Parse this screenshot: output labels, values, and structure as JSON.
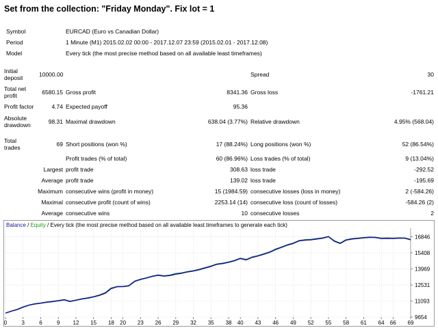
{
  "title": "Set from the collection: \"Friday Monday\".   Fix lot = 1",
  "info": {
    "symbol_label": "Symbol",
    "symbol_value": "EURCAD (Euro vs Canadian Dollar)",
    "period_label": "Period",
    "period_value": "1 Minute (M1) 2015.02.02 00:00 - 2017.12.07 23:59 (2015.02.01 - 2017.12.08)",
    "model_label": "Model",
    "model_value": "Every tick (the most precise method based on all available least timeframes)"
  },
  "stats": {
    "initial_deposit_label": "Initial deposit",
    "initial_deposit_value": "10000.00",
    "spread_label": "Spread",
    "spread_value": "30",
    "total_net_profit_label": "Total net profit",
    "total_net_profit_value": "6580.15",
    "gross_profit_label": "Gross profit",
    "gross_profit_value": "8341.36",
    "gross_loss_label": "Gross loss",
    "gross_loss_value": "-1761.21",
    "profit_factor_label": "Profit factor",
    "profit_factor_value": "4.74",
    "expected_payoff_label": "Expected payoff",
    "expected_payoff_value": "95.36",
    "absolute_drawdown_label": "Absolute drawdown",
    "absolute_drawdown_value": "98.31",
    "maximal_drawdown_label": "Maximal drawdown",
    "maximal_drawdown_value": "638.04 (3.77%)",
    "relative_drawdown_label": "Relative drawdown",
    "relative_drawdown_value": "4.95% (568.04)",
    "total_trades_label": "Total trades",
    "total_trades_value": "69",
    "short_positions_label": "Short positions (won %)",
    "short_positions_value": "17 (88.24%)",
    "long_positions_label": "Long positions (won %)",
    "long_positions_value": "52 (86.54%)",
    "profit_trades_label": "Profit trades (% of total)",
    "profit_trades_value": "60 (86.96%)",
    "loss_trades_label": "Loss trades (% of total)",
    "loss_trades_value": "9 (13.04%)",
    "largest_label": "Largest",
    "largest_profit_label": "profit trade",
    "largest_profit_value": "308.63",
    "largest_loss_label": "loss trade",
    "largest_loss_value": "-292.52",
    "average_label": "Average",
    "average_profit_label": "profit trade",
    "average_profit_value": "139.02",
    "average_loss_label": "loss trade",
    "average_loss_value": "-195.69",
    "maximum_label": "Maximum",
    "max_cons_wins_label": "consecutive wins (profit in money)",
    "max_cons_wins_value": "15 (1984.59)",
    "max_cons_losses_label": "consecutive losses (loss in money)",
    "max_cons_losses_value": "2 (-584.26)",
    "maximal_label": "Maximal",
    "maximal_cons_profit_label": "consecutive profit (count of wins)",
    "maximal_cons_profit_value": "2253.14 (14)",
    "maximal_cons_loss_label": "consecutive loss (count of losses)",
    "maximal_cons_loss_value": "-584.26 (2)",
    "average2_label": "Average",
    "avg_cons_wins_label": "consecutive wins",
    "avg_cons_wins_value": "10",
    "avg_cons_losses_label": "consecutive losses",
    "avg_cons_losses_value": "2"
  },
  "legend": {
    "balance": "Balance",
    "sep": " / ",
    "equity": "Equity",
    "rest": " / Every tick (the most precise method based on all available least timeframes to generate each tick)"
  },
  "colors": {
    "balance": "#1a1a9a",
    "equity": "#1b9a1b",
    "grid": "#c8c8c8",
    "frame": "#9a9a9a"
  },
  "chart_data": {
    "type": "line",
    "title": "",
    "xlabel": "",
    "ylabel": "",
    "x_ticks": [
      "0",
      "3",
      "6",
      "9",
      "12",
      "15",
      "18",
      "20",
      "23",
      "26",
      "29",
      "32",
      "35",
      "38",
      "40",
      "43",
      "46",
      "49",
      "52",
      "55",
      "58",
      "61",
      "64",
      "66",
      "69"
    ],
    "y_ticks": [
      "9654",
      "11093",
      "12531",
      "13969",
      "15408",
      "16846"
    ],
    "xlim": [
      0,
      69
    ],
    "ylim": [
      9654,
      17370
    ],
    "grid": true,
    "series": [
      {
        "name": "Balance",
        "x": [
          0,
          1,
          2,
          3,
          4,
          5,
          6,
          7,
          8,
          9,
          10,
          11,
          12,
          13,
          14,
          15,
          16,
          17,
          18,
          19,
          20,
          21,
          22,
          23,
          24,
          25,
          26,
          27,
          28,
          29,
          30,
          31,
          32,
          33,
          34,
          35,
          36,
          37,
          38,
          39,
          40,
          41,
          42,
          43,
          44,
          45,
          46,
          47,
          48,
          49,
          50,
          51,
          52,
          53,
          54,
          55,
          56,
          57,
          58,
          59,
          60,
          61,
          62,
          63,
          64,
          65,
          66,
          67,
          68,
          69
        ],
        "y": [
          10000,
          10180,
          10330,
          10540,
          10720,
          10830,
          10900,
          10980,
          11040,
          11110,
          11200,
          11050,
          11160,
          11270,
          11350,
          11460,
          11600,
          11800,
          12200,
          12370,
          12380,
          12450,
          12850,
          13020,
          13150,
          13300,
          13400,
          13320,
          13380,
          13500,
          13580,
          13700,
          13780,
          13900,
          14050,
          14200,
          14380,
          14450,
          14560,
          14700,
          14900,
          14780,
          15000,
          15130,
          15290,
          15460,
          15700,
          15900,
          16100,
          16250,
          16480,
          16550,
          16580,
          16650,
          16720,
          16860,
          16450,
          16250,
          16550,
          16650,
          16700,
          16750,
          16800,
          16780,
          16700,
          16710,
          16700,
          16720,
          16720,
          16580
        ]
      },
      {
        "name": "Equity",
        "x": [
          0,
          1,
          2,
          3,
          4,
          5,
          6,
          7,
          8,
          9,
          10,
          11,
          12,
          13,
          14,
          15,
          16,
          17,
          18,
          19,
          20,
          21,
          22,
          23,
          24,
          25,
          26,
          27,
          28,
          29,
          30,
          31,
          32,
          33,
          34,
          35,
          36,
          37,
          38,
          39,
          40,
          41,
          42,
          43,
          44,
          45,
          46,
          47,
          48,
          49,
          50,
          51,
          52,
          53,
          54,
          55,
          56,
          57,
          58,
          59,
          60,
          61,
          62,
          63,
          64,
          65,
          66,
          67,
          68,
          69
        ],
        "y": [
          10000,
          10200,
          10350,
          10580,
          10740,
          10860,
          10920,
          11010,
          11070,
          11140,
          11230,
          11080,
          11190,
          11300,
          11390,
          11500,
          11640,
          11850,
          12260,
          12400,
          12410,
          12480,
          12890,
          13060,
          13180,
          13330,
          13440,
          13360,
          13420,
          13560,
          13620,
          13740,
          13820,
          13940,
          14090,
          14240,
          14420,
          14490,
          14600,
          14740,
          14940,
          14820,
          15040,
          15170,
          15330,
          15500,
          15760,
          15940,
          16140,
          16290,
          16520,
          16590,
          16620,
          16690,
          16760,
          16880,
          16500,
          16290,
          16590,
          16690,
          16740,
          16790,
          16830,
          16810,
          16740,
          16750,
          16740,
          16760,
          16750,
          16620
        ]
      }
    ]
  }
}
